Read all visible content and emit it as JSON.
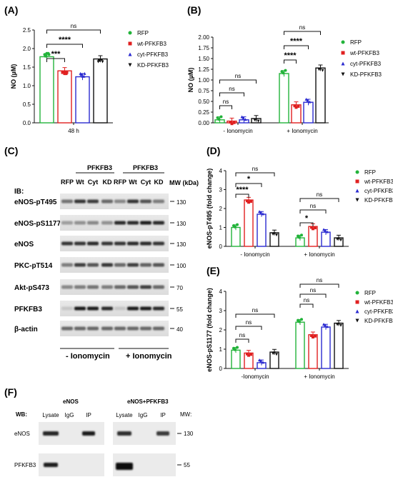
{
  "figure": {
    "panels": {
      "A": "(A)",
      "B": "(B)",
      "C": "(C)",
      "D": "(D)",
      "E": "(E)",
      "F": "(F)"
    },
    "legend": [
      "RFP",
      "wt-PFKFB3",
      "cyt-PFKFB3",
      "KD-PFKFB3"
    ],
    "colors": {
      "RFP": "#22b33a",
      "wt": "#e02020",
      "cyt": "#2a2ad0",
      "KD": "#111111"
    }
  },
  "chart_data": [
    {
      "panel": "A",
      "type": "bar",
      "ylabel": "NO (µM)",
      "ylim": [
        0,
        2.5
      ],
      "yticks": [
        "0.0",
        "0.5",
        "1.0",
        "1.5",
        "2.0",
        "2.5"
      ],
      "categories": [
        "48 h"
      ],
      "series": [
        {
          "name": "RFP",
          "values": [
            1.78
          ]
        },
        {
          "name": "wt-PFKFB3",
          "values": [
            1.4
          ]
        },
        {
          "name": "cyt-PFKFB3",
          "values": [
            1.24
          ]
        },
        {
          "name": "KD-PFKFB3",
          "values": [
            1.72
          ]
        }
      ],
      "significance": [
        "***",
        "****",
        "ns"
      ]
    },
    {
      "panel": "B",
      "type": "bar",
      "ylabel": "NO (µM)",
      "ylim": [
        0,
        2.0
      ],
      "yticks": [
        "0.00",
        "0.25",
        "0.50",
        "0.75",
        "1.00",
        "1.25",
        "1.50",
        "1.75",
        "2.00"
      ],
      "categories": [
        "- Ionomycin",
        "+ Ionomycin"
      ],
      "series": [
        {
          "name": "RFP",
          "values": [
            0.07,
            1.15
          ]
        },
        {
          "name": "wt-PFKFB3",
          "values": [
            0.04,
            0.42
          ]
        },
        {
          "name": "cyt-PFKFB3",
          "values": [
            0.07,
            0.48
          ]
        },
        {
          "name": "KD-PFKFB3",
          "values": [
            0.1,
            1.28
          ]
        }
      ],
      "significance_minus": [
        "ns",
        "ns",
        "ns"
      ],
      "significance_plus": [
        "****",
        "****",
        "ns"
      ]
    },
    {
      "panel": "D",
      "type": "bar",
      "ylabel": "eNOS-pT495 (fold change)",
      "ylim": [
        0,
        4
      ],
      "yticks": [
        "0",
        "1",
        "2",
        "3",
        "4"
      ],
      "categories": [
        "- Ionomycin",
        "+ Ionomycin"
      ],
      "series": [
        {
          "name": "RFP",
          "values": [
            1.0,
            0.45
          ]
        },
        {
          "name": "wt-PFKFB3",
          "values": [
            2.45,
            1.05
          ]
        },
        {
          "name": "cyt-PFKFB3",
          "values": [
            1.7,
            0.75
          ]
        },
        {
          "name": "KD-PFKFB3",
          "values": [
            0.72,
            0.45
          ]
        }
      ],
      "significance_minus": [
        "****",
        "*",
        "ns"
      ],
      "significance_plus": [
        "*",
        "ns",
        "ns"
      ]
    },
    {
      "panel": "E",
      "type": "bar",
      "ylabel": "eNOS-pS1177 (fold change)",
      "ylim": [
        0,
        4
      ],
      "yticks": [
        "0",
        "1",
        "2",
        "3",
        "4"
      ],
      "categories": [
        "-Ionomycin",
        "+ Ionomycin"
      ],
      "series": [
        {
          "name": "RFP",
          "values": [
            0.95,
            2.4
          ]
        },
        {
          "name": "wt-PFKFB3",
          "values": [
            0.8,
            1.75
          ]
        },
        {
          "name": "cyt-PFKFB3",
          "values": [
            0.3,
            2.15
          ]
        },
        {
          "name": "KD-PFKFB3",
          "values": [
            0.85,
            2.35
          ]
        }
      ],
      "significance_minus": [
        "ns",
        "ns",
        "ns"
      ],
      "significance_plus": [
        "ns",
        "ns",
        "ns"
      ]
    }
  ],
  "blot_c": {
    "ib": "IB:",
    "group_label": "PFKFB3",
    "lanes": [
      "RFP",
      "Wt",
      "Cyt",
      "KD",
      "RFP",
      "Wt",
      "Cyt",
      "KD"
    ],
    "mw_header": "MW (kDa)",
    "rows": [
      {
        "label": "eNOS-pT495",
        "mw": "130"
      },
      {
        "label": "eNOS-pS1177",
        "mw": "130"
      },
      {
        "label": "eNOS",
        "mw": "130"
      },
      {
        "label": "PKC-pT514",
        "mw": "100"
      },
      {
        "label": "Akt-pS473",
        "mw": "70"
      },
      {
        "label": "PFKFB3",
        "mw": "55"
      },
      {
        "label": "β-actin",
        "mw": "40"
      }
    ],
    "footer": [
      "- Ionomycin",
      "+ Ionomycin"
    ]
  },
  "blot_f": {
    "wb": "WB:",
    "group1": "eNOS",
    "group2": "eNOS+PFKFB3",
    "lanes": [
      "Lysate",
      "IgG",
      "IP",
      "Lysate",
      "IgG",
      "IP"
    ],
    "mw_header": "MW:",
    "rows": [
      {
        "label": "eNOS",
        "mw": "130"
      },
      {
        "label": "PFKFB3",
        "mw": "55"
      }
    ]
  }
}
